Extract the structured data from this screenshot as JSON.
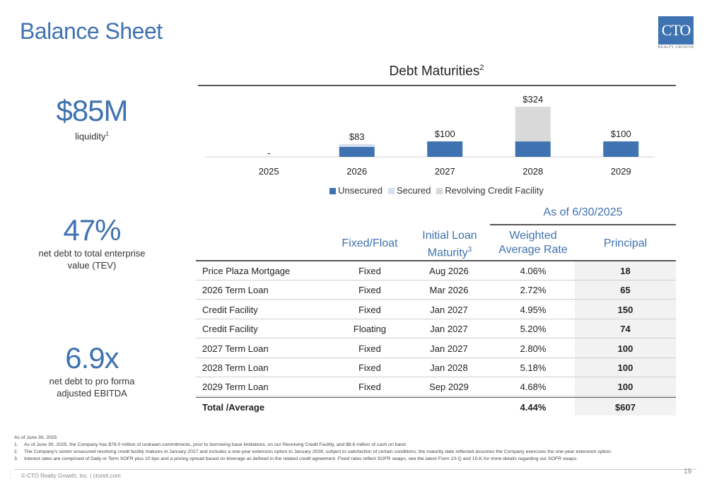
{
  "page": {
    "title": "Balance Sheet",
    "page_number": "19",
    "copyright": "© CTO Realty Growth, Inc. | ctoreit.com"
  },
  "logo": {
    "text": "CTO",
    "subtext": "REALTY GROWTH"
  },
  "metrics": [
    {
      "value": "$85M",
      "label_line1": "liquidity",
      "label_line2": "",
      "footnote": "1"
    },
    {
      "value": "47%",
      "label_line1": "net debt to total enterprise",
      "label_line2": "value (TEV)",
      "footnote": ""
    },
    {
      "value": "6.9x",
      "label_line1": "net debt to pro forma",
      "label_line2": "adjusted EBITDA",
      "footnote": ""
    }
  ],
  "chart_data": {
    "type": "bar",
    "stacked": true,
    "title": "Debt Maturities",
    "title_footnote": "2",
    "categories": [
      "2025",
      "2026",
      "2027",
      "2028",
      "2029"
    ],
    "series": [
      {
        "name": "Unsecured",
        "values": [
          0,
          65,
          100,
          100,
          100
        ],
        "color": "#3f72b0"
      },
      {
        "name": "Secured",
        "values": [
          0,
          18,
          0,
          0,
          0
        ],
        "color": "#d6e0ee"
      },
      {
        "name": "Revolving Credit Facility",
        "values": [
          0,
          0,
          0,
          224,
          0
        ],
        "color": "#d9d9d9"
      }
    ],
    "data_labels": [
      "-",
      "$83",
      "$100",
      "$324",
      "$100"
    ],
    "ylim": [
      0,
      340
    ],
    "legend_position": "bottom"
  },
  "table": {
    "as_of": "As of 6/30/2025",
    "headers": {
      "fixed_float": "Fixed/Float",
      "maturity_line1": "Initial Loan",
      "maturity_line2": "Maturity",
      "maturity_footnote": "3",
      "rate_line1": "Weighted",
      "rate_line2": "Average Rate",
      "principal": "Principal"
    },
    "rows": [
      {
        "name": "Price Plaza Mortgage",
        "type": "Fixed",
        "maturity": "Aug 2026",
        "rate": "4.06%",
        "principal": "18"
      },
      {
        "name": "2026 Term Loan",
        "type": "Fixed",
        "maturity": "Mar 2026",
        "rate": "2.72%",
        "principal": "65"
      },
      {
        "name": "Credit Facility",
        "type": "Fixed",
        "maturity": "Jan 2027",
        "rate": "4.95%",
        "principal": "150"
      },
      {
        "name": "Credit Facility",
        "type": "Floating",
        "maturity": "Jan 2027",
        "rate": "5.20%",
        "principal": "74"
      },
      {
        "name": "2027 Term Loan",
        "type": "Fixed",
        "maturity": "Jan 2027",
        "rate": "2.80%",
        "principal": "100"
      },
      {
        "name": "2028 Term Loan",
        "type": "Fixed",
        "maturity": "Jan 2028",
        "rate": "5.18%",
        "principal": "100"
      },
      {
        "name": "2029 Term Loan",
        "type": "Fixed",
        "maturity": "Sep 2029",
        "rate": "4.68%",
        "principal": "100"
      }
    ],
    "total": {
      "name": "Total /Average",
      "rate": "4.44%",
      "principal": "$607"
    }
  },
  "footnotes": {
    "intro": "As of June 30, 2025",
    "items": [
      {
        "num": "1.",
        "text": "As of June 30, 2025, the Company has $76.0 million of undrawn commitments, prior to borrowing base limitations, on our Revolving Credit Facility, and $8.6 million of cash on hand"
      },
      {
        "num": "2.",
        "text": "The Company's senior unsecured revolving credit facility matures in January 2027 and includes a one-year extension option to January 2028, subject to satisfaction of certain conditions; the maturity date reflected assumes the Company exercises the one-year extension option."
      },
      {
        "num": "3.",
        "text": "Interest rates are comprised of Daily or Term SOFR plus 10 bps and a pricing spread based on leverage as defined in the related credit agreement.  Fixed rates reflect SOFR swaps, see the latest Form 10-Q and 10-K for more details regarding our SOFR swaps."
      }
    ]
  }
}
